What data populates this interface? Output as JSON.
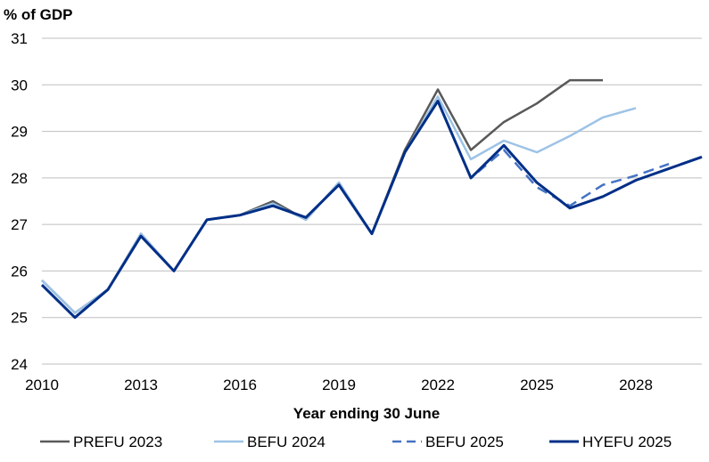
{
  "chart_data": {
    "type": "line",
    "title": "",
    "ylabel": "% of GDP",
    "xlabel": "Year ending 30 June",
    "xlim": [
      2010,
      2030
    ],
    "ylim": [
      24,
      31
    ],
    "x_ticks": [
      2010,
      2013,
      2016,
      2019,
      2022,
      2025,
      2028
    ],
    "y_ticks": [
      24,
      25,
      26,
      27,
      28,
      29,
      30,
      31
    ],
    "grid": true,
    "legend_position": "bottom",
    "series": [
      {
        "name": "PREFU 2023",
        "color": "#595959",
        "dash": false,
        "x": [
          2010,
          2011,
          2012,
          2013,
          2014,
          2015,
          2016,
          2017,
          2018,
          2019,
          2020,
          2021,
          2022,
          2023,
          2024,
          2025,
          2026,
          2027
        ],
        "y": [
          25.8,
          25.1,
          25.6,
          26.8,
          26.0,
          27.1,
          27.2,
          27.5,
          27.1,
          27.9,
          26.8,
          28.6,
          29.9,
          28.6,
          29.2,
          29.6,
          30.1,
          30.1
        ]
      },
      {
        "name": "BEFU 2024",
        "color": "#9dc3e6",
        "dash": false,
        "x": [
          2010,
          2011,
          2012,
          2013,
          2014,
          2015,
          2016,
          2017,
          2018,
          2019,
          2020,
          2021,
          2022,
          2023,
          2024,
          2025,
          2026,
          2027,
          2028
        ],
        "y": [
          25.8,
          25.1,
          25.6,
          26.8,
          26.0,
          27.1,
          27.2,
          27.45,
          27.1,
          27.9,
          26.8,
          28.55,
          29.75,
          28.4,
          28.8,
          28.55,
          28.9,
          29.3,
          29.5
        ]
      },
      {
        "name": "BEFU 2025",
        "color": "#4472c4",
        "dash": true,
        "x": [
          2010,
          2011,
          2012,
          2013,
          2014,
          2015,
          2016,
          2017,
          2018,
          2019,
          2020,
          2021,
          2022,
          2023,
          2024,
          2025,
          2026,
          2027,
          2028,
          2029
        ],
        "y": [
          25.7,
          25.0,
          25.6,
          26.75,
          26.0,
          27.1,
          27.2,
          27.4,
          27.15,
          27.85,
          26.8,
          28.55,
          29.65,
          28.0,
          28.6,
          27.8,
          27.4,
          27.85,
          28.05,
          28.3
        ]
      },
      {
        "name": "HYEFU 2025",
        "color": "#002f87",
        "dash": false,
        "x": [
          2010,
          2011,
          2012,
          2013,
          2014,
          2015,
          2016,
          2017,
          2018,
          2019,
          2020,
          2021,
          2022,
          2023,
          2024,
          2025,
          2026,
          2027,
          2028,
          2029,
          2030
        ],
        "y": [
          25.7,
          25.0,
          25.6,
          26.75,
          26.0,
          27.1,
          27.2,
          27.4,
          27.15,
          27.85,
          26.8,
          28.55,
          29.65,
          28.0,
          28.7,
          27.9,
          27.35,
          27.6,
          27.95,
          28.2,
          28.45
        ]
      }
    ]
  }
}
